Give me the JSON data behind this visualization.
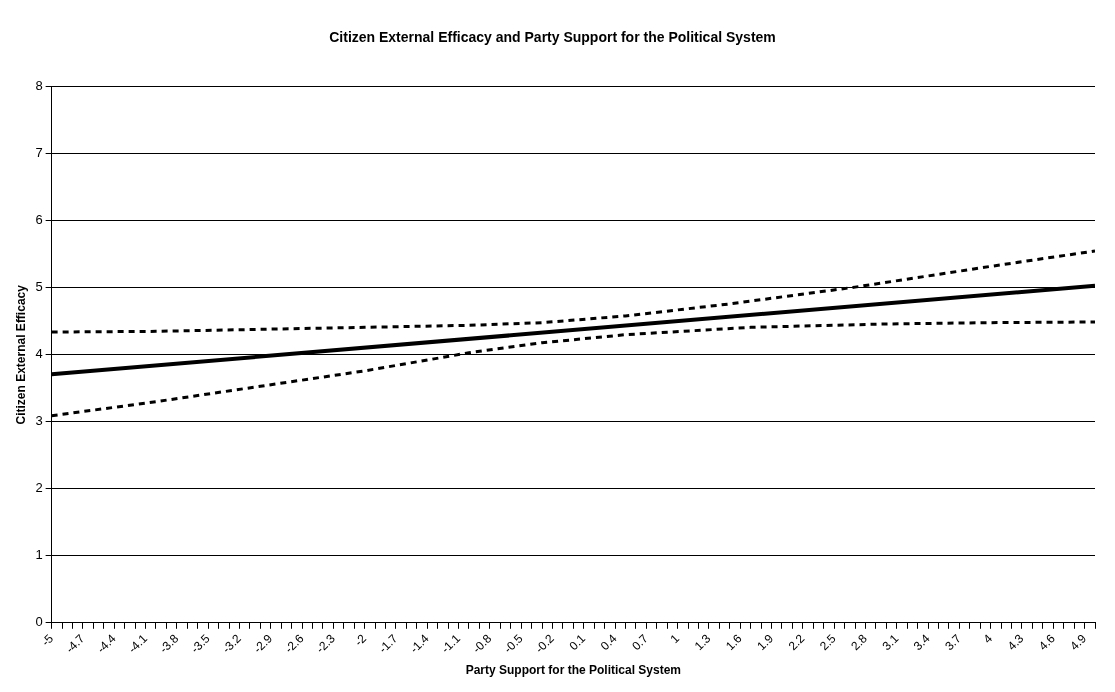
{
  "chart_data": {
    "type": "line",
    "title": "Citizen External Efficacy and Party Support for the Political System",
    "xlabel": "Party Support for the Political System",
    "ylabel": "Citizen External Efficacy",
    "xlim": [
      -5,
      5
    ],
    "ylim": [
      0,
      8
    ],
    "yticks": [
      0,
      1,
      2,
      3,
      4,
      5,
      6,
      7,
      8
    ],
    "xticks": [
      -5,
      {
        "value": -4.9,
        "label": null
      },
      {
        "value": -4.8,
        "label": null
      },
      -4.7,
      {
        "value": -4.6,
        "label": null
      },
      {
        "value": -4.5,
        "label": null
      },
      -4.4,
      {
        "value": -4.3,
        "label": null
      },
      {
        "value": -4.2,
        "label": null
      },
      -4.1,
      {
        "value": -4,
        "label": null
      },
      {
        "value": -3.9,
        "label": null
      },
      -3.8,
      {
        "value": -3.7,
        "label": null
      },
      {
        "value": -3.6,
        "label": null
      },
      -3.5,
      {
        "value": -3.4,
        "label": null
      },
      {
        "value": -3.3,
        "label": null
      },
      -3.2,
      {
        "value": -3.1,
        "label": null
      },
      {
        "value": -3,
        "label": null
      },
      -2.9,
      {
        "value": -2.8,
        "label": null
      },
      {
        "value": -2.7,
        "label": null
      },
      -2.6,
      {
        "value": -2.5,
        "label": null
      },
      {
        "value": -2.4,
        "label": null
      },
      -2.3,
      {
        "value": -2.2,
        "label": null
      },
      {
        "value": -2.1,
        "label": null
      },
      -2,
      {
        "value": -1.9,
        "label": null
      },
      {
        "value": -1.8,
        "label": null
      },
      -1.7,
      {
        "value": -1.6,
        "label": null
      },
      {
        "value": -1.5,
        "label": null
      },
      -1.4,
      {
        "value": -1.3,
        "label": null
      },
      {
        "value": -1.2,
        "label": null
      },
      -1.1,
      {
        "value": -1,
        "label": null
      },
      {
        "value": -0.9,
        "label": null
      },
      -0.8,
      {
        "value": -0.7,
        "label": null
      },
      {
        "value": -0.6,
        "label": null
      },
      -0.5,
      {
        "value": -0.4,
        "label": null
      },
      {
        "value": -0.3,
        "label": null
      },
      -0.2,
      {
        "value": -0.1,
        "label": null
      },
      {
        "value": 0,
        "label": null
      },
      0.1,
      {
        "value": 0.2,
        "label": null
      },
      {
        "value": 0.3,
        "label": null
      },
      0.4,
      {
        "value": 0.5,
        "label": null
      },
      {
        "value": 0.6,
        "label": null
      },
      0.7,
      {
        "value": 0.8,
        "label": null
      },
      {
        "value": 0.9,
        "label": null
      },
      1,
      {
        "value": 1.1,
        "label": null
      },
      {
        "value": 1.2,
        "label": null
      },
      1.3,
      {
        "value": 1.4,
        "label": null
      },
      {
        "value": 1.5,
        "label": null
      },
      1.6,
      {
        "value": 1.7,
        "label": null
      },
      {
        "value": 1.8,
        "label": null
      },
      1.9,
      {
        "value": 2,
        "label": null
      },
      {
        "value": 2.1,
        "label": null
      },
      2.2,
      {
        "value": 2.3,
        "label": null
      },
      {
        "value": 2.4,
        "label": null
      },
      2.5,
      {
        "value": 2.6,
        "label": null
      },
      {
        "value": 2.7,
        "label": null
      },
      2.8,
      {
        "value": 2.9,
        "label": null
      },
      {
        "value": 3,
        "label": null
      },
      3.1,
      {
        "value": 3.2,
        "label": null
      },
      {
        "value": 3.3,
        "label": null
      },
      3.4,
      {
        "value": 3.5,
        "label": null
      },
      {
        "value": 3.6,
        "label": null
      },
      3.7,
      {
        "value": 3.8,
        "label": null
      },
      {
        "value": 3.9,
        "label": null
      },
      4,
      {
        "value": 4.1,
        "label": null
      },
      {
        "value": 4.2,
        "label": null
      },
      4.3,
      {
        "value": 4.4,
        "label": null
      },
      {
        "value": 4.5,
        "label": null
      },
      4.6,
      {
        "value": 4.7,
        "label": null
      },
      {
        "value": 4.8,
        "label": null
      },
      4.9,
      {
        "value": 5,
        "label": null
      }
    ],
    "grid": "y",
    "legend": false,
    "marker": "none",
    "series": [
      {
        "color": "#000000",
        "line_style": "dashed",
        "x": [
          -5,
          -4,
          -3,
          -2,
          -1,
          -0.3,
          0.5,
          1.5,
          2.7,
          4,
          5
        ],
        "values": [
          4.34,
          4.35,
          4.38,
          4.41,
          4.44,
          4.48,
          4.58,
          4.76,
          5.01,
          5.32,
          5.55
        ]
      },
      {
        "color": "#000000",
        "line_style": "solid",
        "x": [
          -5,
          5
        ],
        "values": [
          3.71,
          5.03
        ]
      },
      {
        "color": "#000000",
        "line_style": "dashed",
        "x": [
          -5,
          -4,
          -3,
          -2,
          -1,
          -0.3,
          0.5,
          1.7,
          3,
          4,
          5
        ],
        "values": [
          3.09,
          3.3,
          3.53,
          3.76,
          4.03,
          4.18,
          4.3,
          4.41,
          4.46,
          4.48,
          4.49
        ]
      }
    ]
  }
}
